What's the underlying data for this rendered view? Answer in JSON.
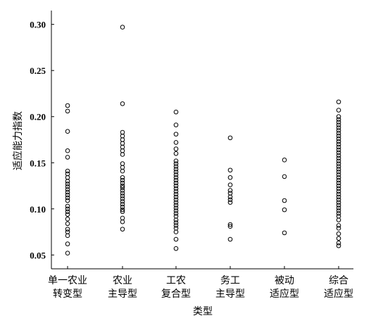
{
  "chart_data": {
    "type": "strip",
    "y_label": "适应能力指数",
    "x_label": "类型",
    "categories": [
      [
        "单一农业",
        "转变型"
      ],
      [
        "农业",
        "主导型"
      ],
      [
        "工农",
        "复合型"
      ],
      [
        "务工",
        "主导型"
      ],
      [
        "被动",
        "适应型"
      ],
      [
        "综合",
        "适应型"
      ]
    ],
    "values": [
      [
        0.212,
        0.206,
        0.184,
        0.163,
        0.156,
        0.141,
        0.138,
        0.134,
        0.13,
        0.127,
        0.124,
        0.121,
        0.118,
        0.115,
        0.112,
        0.109,
        0.103,
        0.1,
        0.097,
        0.094,
        0.089,
        0.084,
        0.078,
        0.075,
        0.071,
        0.062,
        0.052
      ],
      [
        0.297,
        0.214,
        0.183,
        0.179,
        0.175,
        0.171,
        0.167,
        0.163,
        0.159,
        0.149,
        0.145,
        0.141,
        0.134,
        0.131,
        0.128,
        0.125,
        0.123,
        0.12,
        0.117,
        0.114,
        0.111,
        0.108,
        0.105,
        0.102,
        0.099,
        0.097,
        0.09,
        0.086,
        0.078
      ],
      [
        0.205,
        0.191,
        0.181,
        0.172,
        0.165,
        0.16,
        0.152,
        0.149,
        0.146,
        0.143,
        0.14,
        0.137,
        0.134,
        0.131,
        0.128,
        0.125,
        0.122,
        0.119,
        0.116,
        0.113,
        0.11,
        0.107,
        0.104,
        0.101,
        0.098,
        0.095,
        0.092,
        0.088,
        0.085,
        0.082,
        0.079,
        0.075,
        0.067,
        0.057
      ],
      [
        0.177,
        0.142,
        0.134,
        0.126,
        0.12,
        0.117,
        0.113,
        0.11,
        0.107,
        0.083,
        0.081,
        0.067
      ],
      [
        0.153,
        0.135,
        0.109,
        0.099,
        0.074
      ],
      [
        0.216,
        0.207,
        0.2,
        0.197,
        0.194,
        0.191,
        0.188,
        0.185,
        0.182,
        0.179,
        0.176,
        0.173,
        0.17,
        0.167,
        0.164,
        0.161,
        0.158,
        0.155,
        0.152,
        0.149,
        0.146,
        0.143,
        0.14,
        0.137,
        0.134,
        0.131,
        0.128,
        0.125,
        0.122,
        0.119,
        0.116,
        0.113,
        0.11,
        0.107,
        0.104,
        0.101,
        0.098,
        0.095,
        0.092,
        0.088,
        0.082,
        0.079,
        0.073,
        0.068,
        0.063,
        0.06
      ]
    ],
    "color": "#000000",
    "ylim": [
      0.035,
      0.315
    ],
    "yticks": [
      0.05,
      {
        "value": 0.1,
        "label": "0.10"
      },
      0.15,
      {
        "value": 0.2,
        "label": "0.20"
      },
      0.25,
      {
        "value": 0.3,
        "label": "0.30"
      }
    ]
  }
}
